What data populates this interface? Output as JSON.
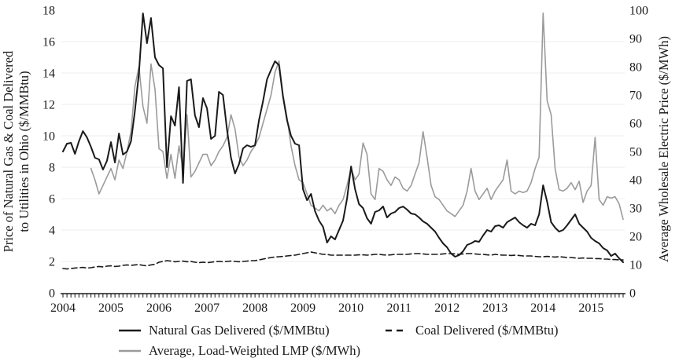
{
  "chart_data": {
    "type": "line",
    "title": "",
    "x_start": "2004-01",
    "x_end": "2015-09",
    "x_tick_labels": [
      "2004",
      "2005",
      "2006",
      "2007",
      "2008",
      "2009",
      "2010",
      "2011",
      "2012",
      "2013",
      "2014",
      "2015"
    ],
    "grid": "horizontal-light",
    "legend_position": "bottom",
    "colors": {
      "black_line": "#1a1a1a",
      "gray_line": "#9b9b9b",
      "gridline": "#eeeeee"
    },
    "left_axis": {
      "label_line1": "Price of Natural Gas & Coal Delivered",
      "label_line2": "to Utilities in Ohio ($/MMBtu)",
      "min": 0,
      "max": 18,
      "step": 2,
      "ticks": [
        0,
        2,
        4,
        6,
        8,
        10,
        12,
        14,
        16,
        18
      ]
    },
    "right_axis": {
      "label": "Average Wholesale Electric Price ($/MWh)",
      "min": 0,
      "max": 100,
      "step": 10,
      "ticks": [
        0,
        10,
        20,
        30,
        40,
        50,
        60,
        70,
        80,
        90,
        100
      ]
    },
    "series": [
      {
        "name": "Natural Gas Delivered ($/MMBtu)",
        "axis": "left",
        "color": "#1a1a1a",
        "style": "solid",
        "values": [
          9.0,
          9.5,
          9.55,
          8.85,
          9.65,
          10.3,
          9.9,
          9.3,
          8.6,
          8.5,
          7.85,
          8.4,
          9.6,
          8.3,
          10.15,
          8.8,
          9.0,
          9.65,
          11.6,
          14.0,
          17.8,
          15.9,
          17.5,
          15.0,
          14.5,
          14.3,
          8.0,
          11.25,
          10.65,
          13.1,
          7.0,
          13.5,
          13.6,
          11.3,
          10.55,
          12.4,
          11.75,
          9.8,
          10.0,
          12.8,
          12.6,
          10.4,
          8.6,
          7.6,
          8.2,
          9.2,
          9.4,
          9.3,
          9.4,
          11.0,
          12.2,
          13.6,
          14.2,
          14.75,
          14.5,
          12.5,
          11.0,
          10.0,
          9.5,
          9.4,
          6.6,
          5.9,
          6.3,
          5.2,
          4.6,
          4.2,
          3.2,
          3.6,
          3.4,
          4.0,
          4.6,
          6.0,
          8.05,
          6.6,
          5.65,
          5.4,
          4.75,
          4.4,
          5.15,
          5.25,
          5.5,
          4.8,
          5.05,
          5.15,
          5.4,
          5.5,
          5.3,
          5.05,
          5.0,
          4.8,
          4.55,
          4.4,
          4.15,
          3.9,
          3.5,
          3.15,
          2.9,
          2.5,
          2.3,
          2.4,
          2.65,
          3.05,
          3.15,
          3.3,
          3.25,
          3.65,
          4.0,
          3.9,
          4.25,
          4.3,
          4.15,
          4.5,
          4.65,
          4.8,
          4.5,
          4.3,
          4.15,
          4.4,
          4.3,
          5.0,
          6.85,
          5.8,
          4.5,
          4.15,
          3.9,
          4.0,
          4.3,
          4.65,
          5.0,
          4.4,
          4.15,
          3.9,
          3.5,
          3.3,
          3.15,
          2.85,
          2.7,
          2.35,
          2.5,
          2.2,
          1.95
        ]
      },
      {
        "name": "Coal Delivered ($/MMBtu)",
        "axis": "left",
        "color": "#1a1a1a",
        "style": "dashed",
        "values": [
          1.55,
          1.52,
          1.55,
          1.58,
          1.6,
          1.62,
          1.58,
          1.6,
          1.65,
          1.68,
          1.65,
          1.7,
          1.72,
          1.68,
          1.7,
          1.75,
          1.78,
          1.75,
          1.78,
          1.8,
          1.75,
          1.72,
          1.78,
          1.82,
          1.95,
          2.0,
          2.05,
          2.02,
          1.98,
          2.0,
          2.02,
          1.98,
          2.0,
          1.95,
          1.92,
          1.95,
          1.92,
          1.95,
          1.98,
          2.0,
          1.98,
          2.0,
          2.02,
          2.0,
          1.98,
          2.0,
          2.02,
          2.05,
          2.05,
          2.1,
          2.15,
          2.2,
          2.25,
          2.28,
          2.3,
          2.32,
          2.35,
          2.38,
          2.4,
          2.45,
          2.5,
          2.55,
          2.6,
          2.55,
          2.5,
          2.45,
          2.45,
          2.4,
          2.4,
          2.4,
          2.4,
          2.4,
          2.4,
          2.4,
          2.42,
          2.42,
          2.4,
          2.42,
          2.45,
          2.45,
          2.42,
          2.4,
          2.42,
          2.45,
          2.45,
          2.45,
          2.45,
          2.48,
          2.5,
          2.5,
          2.48,
          2.45,
          2.45,
          2.45,
          2.45,
          2.48,
          2.5,
          2.5,
          2.48,
          2.45,
          2.48,
          2.5,
          2.5,
          2.48,
          2.45,
          2.45,
          2.42,
          2.4,
          2.45,
          2.42,
          2.4,
          2.4,
          2.38,
          2.4,
          2.38,
          2.35,
          2.35,
          2.35,
          2.32,
          2.3,
          2.3,
          2.32,
          2.3,
          2.28,
          2.3,
          2.28,
          2.25,
          2.25,
          2.22,
          2.2,
          2.22,
          2.2,
          2.2,
          2.18,
          2.18,
          2.15,
          2.15,
          2.12,
          2.12,
          2.1,
          2.1
        ]
      },
      {
        "name": "Average, Load-Weighted LMP ($/MWh)",
        "axis": "right",
        "color": "#9b9b9b",
        "style": "solid",
        "values": [
          null,
          null,
          null,
          null,
          null,
          null,
          null,
          44,
          40,
          35,
          38,
          41,
          44,
          40,
          47,
          44,
          50,
          57,
          73,
          80,
          66,
          60,
          81,
          72,
          51,
          50,
          40.5,
          49,
          40.5,
          52,
          44,
          63,
          41,
          43,
          46,
          49,
          49,
          45,
          47,
          50,
          52,
          55,
          63,
          58,
          48,
          45,
          47,
          50,
          52,
          55,
          60,
          65,
          70,
          78,
          82,
          70,
          62,
          52,
          45,
          40,
          39,
          35,
          31,
          30,
          29,
          31,
          29,
          30,
          28,
          31,
          33,
          38,
          44,
          40,
          42,
          53,
          49,
          35,
          33,
          44,
          43,
          40,
          38,
          41,
          40,
          37,
          36,
          38,
          42,
          46,
          57,
          48,
          38,
          34,
          33,
          31,
          29,
          28,
          27,
          29,
          31,
          36,
          44,
          36,
          33,
          35,
          37,
          33,
          36,
          38,
          40,
          47,
          36,
          35,
          36,
          35.5,
          36,
          39,
          44,
          48,
          99,
          68,
          63,
          44,
          36.5,
          36,
          37,
          39,
          36.5,
          39.5,
          32,
          36,
          38,
          55,
          33,
          31,
          34,
          33.5,
          34,
          31.5,
          26
        ]
      }
    ]
  },
  "legend": {
    "gas": "Natural Gas Delivered ($/MMBtu)",
    "coal": "Coal Delivered ($/MMBtu)",
    "lmp": "Average, Load-Weighted LMP ($/MWh)"
  }
}
